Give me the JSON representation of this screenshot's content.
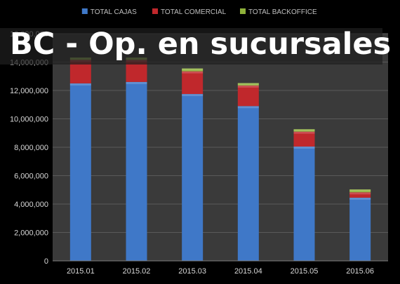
{
  "overlay_title": "BC - Op. en sucursales",
  "chart_data": {
    "type": "bar",
    "stacked": true,
    "title": "",
    "xlabel": "",
    "ylabel": "",
    "categories": [
      "2015.01",
      "2015.02",
      "2015.03",
      "2015.04",
      "2015.05",
      "2015.06"
    ],
    "series": [
      {
        "name": "TOTAL CAJAS",
        "color": "#3f78c8",
        "values": [
          12500000,
          12600000,
          11750000,
          10900000,
          8050000,
          4450000
        ]
      },
      {
        "name": "TOTAL COMERCIAL",
        "color": "#c0282c",
        "values": [
          1650000,
          1550000,
          1600000,
          1450000,
          1050000,
          380000
        ]
      },
      {
        "name": "TOTAL BACKOFFICE",
        "color": "#8fb23a",
        "values": [
          170000,
          170000,
          200000,
          170000,
          170000,
          200000
        ]
      }
    ],
    "ylim": [
      0,
      16000000
    ],
    "yticks": [
      0,
      2000000,
      4000000,
      6000000,
      8000000,
      10000000,
      12000000,
      14000000,
      16000000
    ],
    "ytick_labels": [
      "0",
      "2,000,000",
      "4,000,000",
      "6,000,000",
      "8,000,000",
      "10,000,000",
      "12,000,000",
      "14,000,000",
      "16,000,000"
    ],
    "grid": true,
    "legend_position": "top-center",
    "colors": {
      "background": "#000000",
      "plot_area": "#3a3a3a",
      "grid": "#5a5a5a",
      "text": "#d8d8d8"
    }
  }
}
